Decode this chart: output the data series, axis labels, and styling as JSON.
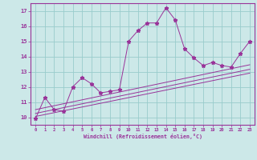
{
  "xlabel": "Windchill (Refroidissement éolien,°C)",
  "bg_color": "#cce8e8",
  "line_color": "#993399",
  "grid_color": "#99cccc",
  "xlim": [
    -0.5,
    23.5
  ],
  "ylim": [
    9.5,
    17.5
  ],
  "xticks": [
    0,
    1,
    2,
    3,
    4,
    5,
    6,
    7,
    8,
    9,
    10,
    11,
    12,
    13,
    14,
    15,
    16,
    17,
    18,
    19,
    20,
    21,
    22,
    23
  ],
  "yticks": [
    10,
    11,
    12,
    13,
    14,
    15,
    16,
    17
  ],
  "main_x": [
    0,
    1,
    2,
    3,
    4,
    5,
    6,
    7,
    8,
    9,
    10,
    11,
    12,
    13,
    14,
    15,
    16,
    17,
    18,
    19,
    20,
    21,
    22,
    23
  ],
  "main_y": [
    9.9,
    11.3,
    10.5,
    10.4,
    12.0,
    12.6,
    12.2,
    11.6,
    11.7,
    11.8,
    15.0,
    15.7,
    16.2,
    16.2,
    17.2,
    16.4,
    14.5,
    13.9,
    13.4,
    13.6,
    13.4,
    13.3,
    14.2,
    15.0
  ],
  "trend_lines": [
    {
      "x": [
        0,
        23
      ],
      "y": [
        10.05,
        12.9
      ]
    },
    {
      "x": [
        0,
        23
      ],
      "y": [
        10.25,
        13.15
      ]
    },
    {
      "x": [
        0,
        23
      ],
      "y": [
        10.5,
        13.45
      ]
    }
  ]
}
